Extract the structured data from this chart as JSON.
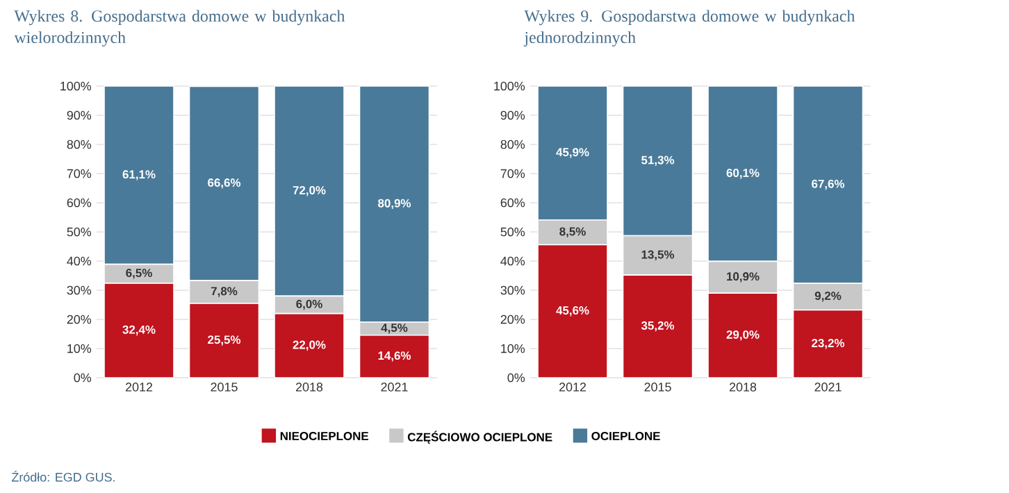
{
  "chart_data": [
    {
      "type": "bar",
      "stacked": true,
      "title": "Wykres 8. Gospodarstwa domowe w budynkach wielorodzinnych",
      "categories": [
        "2012",
        "2015",
        "2018",
        "2021"
      ],
      "series": [
        {
          "name": "NIEOCIEPLONE",
          "color": "#c0141f",
          "values": [
            32.4,
            25.5,
            22.0,
            14.6
          ],
          "value_labels": [
            "32,4%",
            "25,5%",
            "22,0%",
            "14,6%"
          ]
        },
        {
          "name": "CZĘŚCIOWO OCIEPLONE",
          "color": "#c8c8c8",
          "values": [
            6.5,
            7.8,
            6.0,
            4.5
          ],
          "value_labels": [
            "6,5%",
            "7,8%",
            "6,0%",
            "4,5%"
          ]
        },
        {
          "name": "OCIEPLONE",
          "color": "#4a7a99",
          "values": [
            61.1,
            66.6,
            72.0,
            80.9
          ],
          "value_labels": [
            "61,1%",
            "66,6%",
            "72,0%",
            "80,9%"
          ]
        }
      ],
      "ylim": [
        0,
        100
      ],
      "yticks": [
        {
          "value": 0,
          "label": "0%"
        },
        {
          "value": 10,
          "label": "10%"
        },
        {
          "value": 20,
          "label": "20%"
        },
        {
          "value": 30,
          "label": "30%"
        },
        {
          "value": 40,
          "label": "40%"
        },
        {
          "value": 50,
          "label": "50%"
        },
        {
          "value": 60,
          "label": "60%"
        },
        {
          "value": 70,
          "label": "70%"
        },
        {
          "value": 80,
          "label": "80%"
        },
        {
          "value": 90,
          "label": "90%"
        },
        {
          "value": 100,
          "label": "100%"
        }
      ],
      "grid": "y",
      "legend": "bottom",
      "annotations": [
        "Źródło: EGD GUS."
      ]
    },
    {
      "type": "bar",
      "stacked": true,
      "title": "Wykres 9. Gospodarstwa domowe w budynkach jednorodzinnych",
      "categories": [
        "2012",
        "2015",
        "2018",
        "2021"
      ],
      "series": [
        {
          "color": "#c0141f",
          "values": [
            45.6,
            35.2,
            29.0,
            23.2
          ],
          "value_labels": [
            "45,6%",
            "35,2%",
            "29,0%",
            "23,2%"
          ]
        },
        {
          "color": "#c8c8c8",
          "values": [
            8.5,
            13.5,
            10.9,
            9.2
          ],
          "value_labels": [
            "8,5%",
            "13,5%",
            "10,9%",
            "9,2%"
          ]
        },
        {
          "color": "#4a7a99",
          "values": [
            45.9,
            51.3,
            60.1,
            67.6
          ],
          "value_labels": [
            "45,9%",
            "51,3%",
            "60,1%",
            "67,6%"
          ]
        }
      ],
      "ylim": [
        0,
        100
      ],
      "yticks": [
        {
          "value": 0,
          "label": "0%"
        },
        {
          "value": 10,
          "label": "10%"
        },
        {
          "value": 20,
          "label": "20%"
        },
        {
          "value": 30,
          "label": "30%"
        },
        {
          "value": 40,
          "label": "40%"
        },
        {
          "value": 50,
          "label": "50%"
        },
        {
          "value": 60,
          "label": "60%"
        },
        {
          "value": 70,
          "label": "70%"
        },
        {
          "value": 80,
          "label": "80%"
        },
        {
          "value": 90,
          "label": "90%"
        },
        {
          "value": 100,
          "label": "100%"
        }
      ],
      "grid": "y"
    }
  ]
}
